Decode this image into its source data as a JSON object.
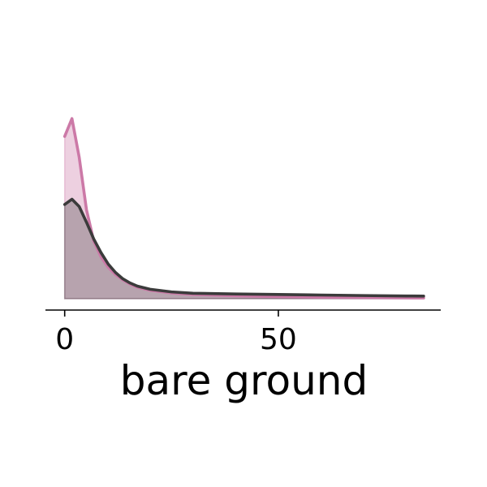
{
  "chart_data": {
    "type": "area",
    "title": "",
    "xlabel": "bare ground",
    "ylabel": "",
    "xlim": [
      -4.5,
      88
    ],
    "ylim": [
      0,
      0.2
    ],
    "xticks": [
      0,
      50
    ],
    "xtick_labels": [
      "0",
      "50"
    ],
    "grid": false,
    "legend": "none",
    "series": [
      {
        "color": "#cc79a7",
        "fill_opacity": 0.35,
        "x": [
          0,
          1.7,
          3.4,
          5.1,
          6.8,
          8.5,
          10.2,
          11.9,
          13.6,
          15.3,
          17,
          20,
          25,
          30,
          40,
          50,
          60,
          70,
          80,
          84
        ],
        "y": [
          0.155,
          0.172,
          0.135,
          0.085,
          0.055,
          0.04,
          0.03,
          0.023,
          0.018,
          0.014,
          0.011,
          0.008,
          0.0055,
          0.004,
          0.0028,
          0.002,
          0.0014,
          0.0011,
          0.0008,
          0.0007
        ]
      },
      {
        "color": "#3b3b3b",
        "fill_opacity": 0.3,
        "x": [
          0,
          1.7,
          3.4,
          5.1,
          6.8,
          8.5,
          10.2,
          11.9,
          13.6,
          15.3,
          17,
          20,
          25,
          30,
          40,
          50,
          60,
          70,
          80,
          84
        ],
        "y": [
          0.09,
          0.095,
          0.088,
          0.073,
          0.057,
          0.044,
          0.033,
          0.025,
          0.019,
          0.015,
          0.012,
          0.009,
          0.0065,
          0.0052,
          0.0045,
          0.004,
          0.0035,
          0.003,
          0.0026,
          0.0025
        ]
      }
    ]
  }
}
